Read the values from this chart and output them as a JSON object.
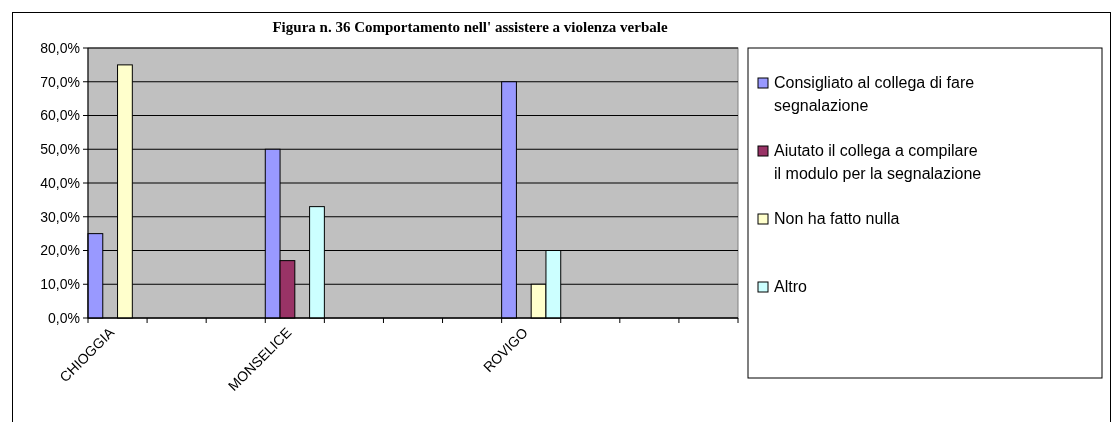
{
  "chart_data": {
    "type": "bar",
    "title": "Figura n. 36 Comportamento nell' assistere a violenza verbale",
    "categories": [
      "CHIOGGIA",
      null,
      null,
      "MONSELICE",
      null,
      null,
      null,
      "ROVIGO",
      null,
      null,
      null
    ],
    "series": [
      {
        "name": "Consigliato al collega di fare segnalazione",
        "color": "#9999ff",
        "values": [
          25,
          null,
          null,
          50,
          null,
          null,
          null,
          70,
          null,
          null,
          null
        ]
      },
      {
        "name": "Aiutato il collega a compilare il modulo per la segnalazione",
        "color": "#993366",
        "values": [
          null,
          null,
          null,
          17,
          null,
          null,
          null,
          null,
          null,
          null,
          null
        ]
      },
      {
        "name": "Non ha fatto nulla",
        "color": "#ffffcc",
        "values": [
          75,
          null,
          null,
          null,
          null,
          null,
          null,
          10,
          null,
          null,
          null
        ]
      },
      {
        "name": "Altro",
        "color": "#ccffff",
        "values": [
          null,
          null,
          null,
          33,
          null,
          null,
          null,
          20,
          null,
          null,
          null
        ]
      }
    ],
    "ylim": [
      0,
      80
    ],
    "yticks": [
      {
        "value": 0,
        "label": "0,0%"
      },
      {
        "value": 10,
        "label": "10,0%"
      },
      {
        "value": 20,
        "label": "20,0%"
      },
      {
        "value": 30,
        "label": "30,0%"
      },
      {
        "value": 40,
        "label": "40,0%"
      },
      {
        "value": 50,
        "label": "50,0%"
      },
      {
        "value": 60,
        "label": "60,0%"
      },
      {
        "value": 70,
        "label": "70,0%"
      },
      {
        "value": 80,
        "label": "80,0%"
      }
    ],
    "grid": "y",
    "legend": "right"
  }
}
